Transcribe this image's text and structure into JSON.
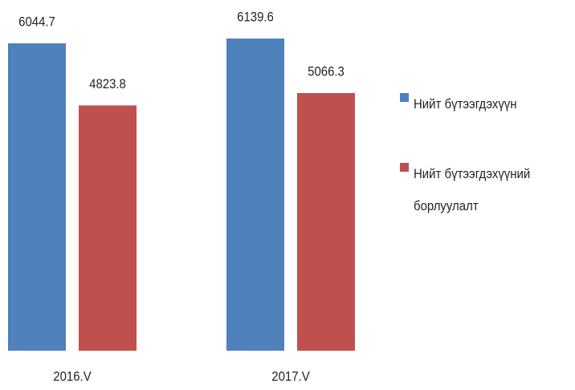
{
  "chart_data": {
    "type": "bar",
    "categories": [
      "2016.V",
      "2017.V"
    ],
    "series": [
      {
        "name": "Нийт бүтээгдэхүүн",
        "color": "#4f81bd",
        "values": [
          6044.7,
          6139.6
        ]
      },
      {
        "name": "Нийт бүтээгдэхүүний борлуулалт",
        "color": "#c0504d",
        "values": [
          4823.8,
          5066.3
        ]
      }
    ]
  }
}
